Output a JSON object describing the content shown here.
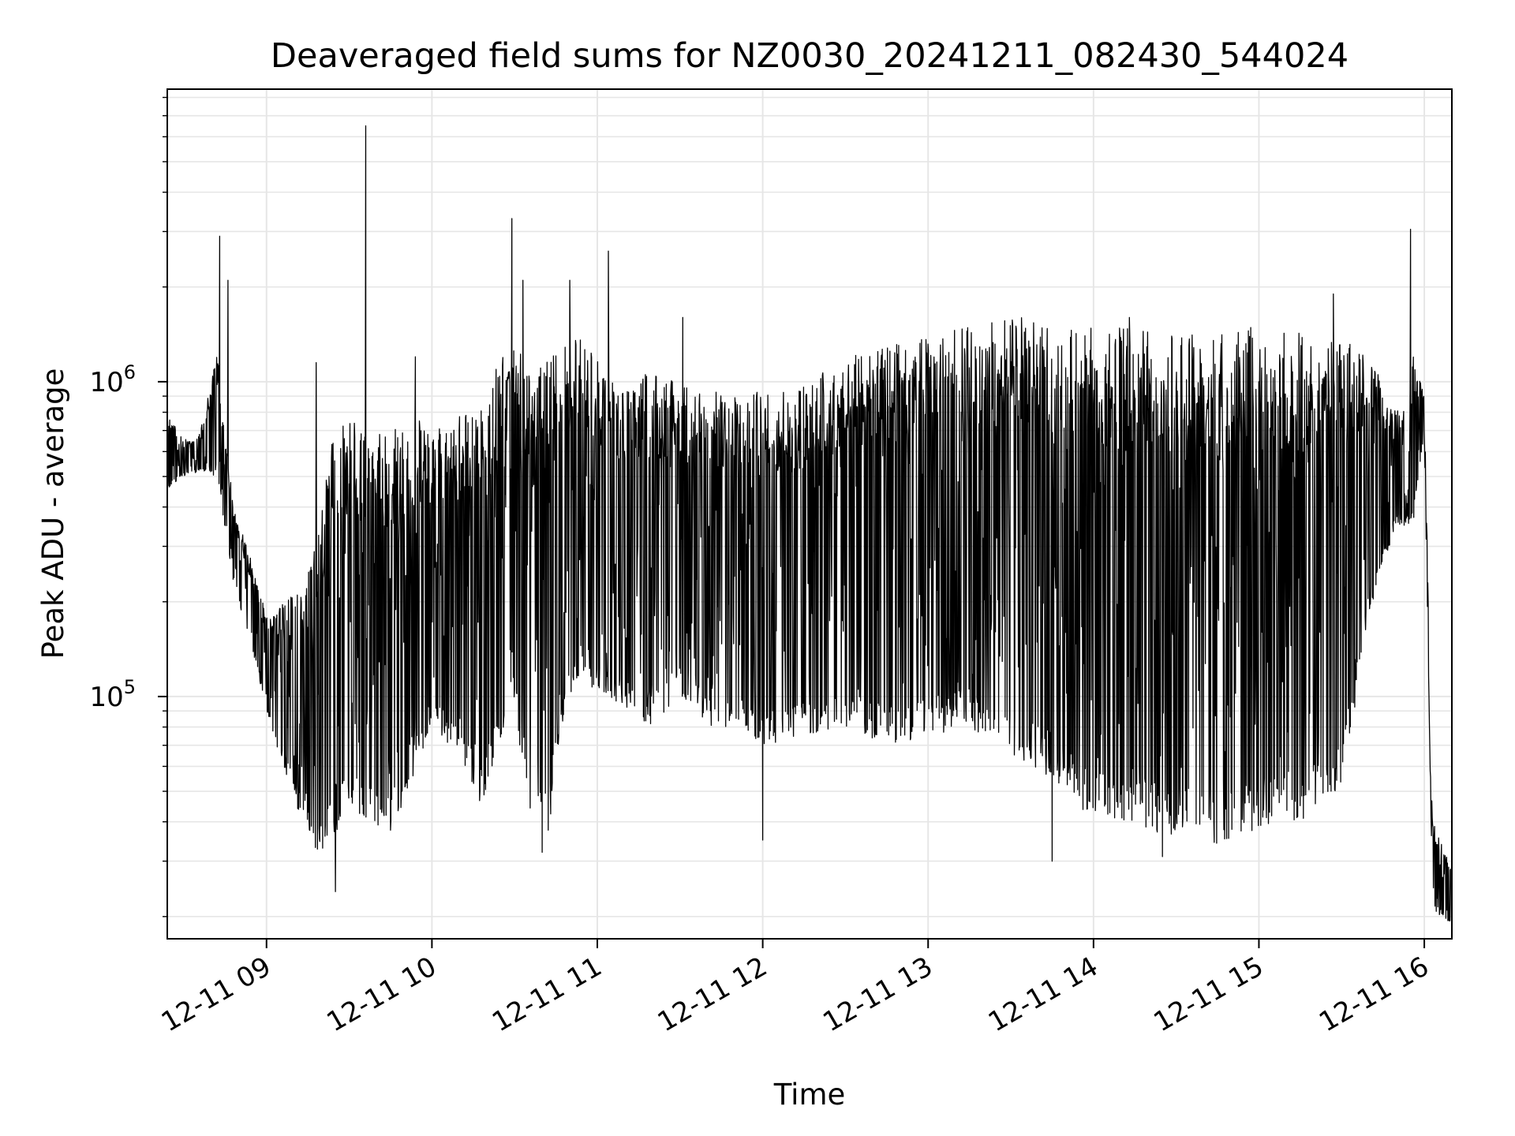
{
  "chart_data": {
    "type": "line",
    "title": "Deaveraged field sums for NZ0030_20241211_082430_544024",
    "xlabel": "Time",
    "ylabel": "Peak ADU - average",
    "yscale": "log",
    "grid": true,
    "line_color": "#000000",
    "grid_color": "#e6e6e6",
    "xlim": [
      "2024-12-11 08:24",
      "2024-12-11 16:10"
    ],
    "ylim": [
      17000,
      8500000
    ],
    "x_ticks": [
      "12-11 09",
      "12-11 10",
      "12-11 11",
      "12-11 12",
      "12-11 13",
      "12-11 14",
      "12-11 15",
      "12-11 16"
    ],
    "y_ticks": [
      {
        "base": "10",
        "exp": "5",
        "value": 100000
      },
      {
        "base": "10",
        "exp": "6",
        "value": 1000000
      }
    ],
    "series": [
      {
        "envelope": {
          "x": [
            "2024-12-11 08:24",
            "2024-12-11 08:30",
            "2024-12-11 08:36",
            "2024-12-11 08:42",
            "2024-12-11 08:48",
            "2024-12-11 08:54",
            "2024-12-11 09:00",
            "2024-12-11 09:06",
            "2024-12-11 09:12",
            "2024-12-11 09:18",
            "2024-12-11 09:24",
            "2024-12-11 09:30",
            "2024-12-11 09:36",
            "2024-12-11 09:42",
            "2024-12-11 09:48",
            "2024-12-11 09:54",
            "2024-12-11 10:00",
            "2024-12-11 10:06",
            "2024-12-11 10:12",
            "2024-12-11 10:18",
            "2024-12-11 10:24",
            "2024-12-11 10:30",
            "2024-12-11 10:36",
            "2024-12-11 10:42",
            "2024-12-11 10:48",
            "2024-12-11 10:54",
            "2024-12-11 11:00",
            "2024-12-11 11:10",
            "2024-12-11 11:20",
            "2024-12-11 11:30",
            "2024-12-11 11:40",
            "2024-12-11 11:50",
            "2024-12-11 12:00",
            "2024-12-11 12:15",
            "2024-12-11 12:30",
            "2024-12-11 12:45",
            "2024-12-11 13:00",
            "2024-12-11 13:15",
            "2024-12-11 13:30",
            "2024-12-11 13:45",
            "2024-12-11 14:00",
            "2024-12-11 14:15",
            "2024-12-11 14:30",
            "2024-12-11 14:45",
            "2024-12-11 15:00",
            "2024-12-11 15:15",
            "2024-12-11 15:30",
            "2024-12-11 15:40",
            "2024-12-11 15:50",
            "2024-12-11 15:56",
            "2024-12-11 16:00",
            "2024-12-11 16:03",
            "2024-12-11 16:06",
            "2024-12-11 16:10"
          ],
          "upper": [
            800000,
            650000,
            700000,
            1300000,
            400000,
            280000,
            180000,
            200000,
            220000,
            300000,
            700000,
            750000,
            740000,
            730000,
            700000,
            800000,
            700000,
            750000,
            800000,
            850000,
            1200000,
            1500000,
            1000000,
            1200000,
            1300000,
            1400000,
            1200000,
            950000,
            1100000,
            1000000,
            950000,
            900000,
            950000,
            1000000,
            1200000,
            1300000,
            1400000,
            1500000,
            1600000,
            1600000,
            1500000,
            1500000,
            1400000,
            1450000,
            1500000,
            1450000,
            1400000,
            1200000,
            800000,
            1200000,
            900000,
            40000,
            35000,
            30000
          ],
          "lower": [
            450000,
            500000,
            520000,
            500000,
            230000,
            150000,
            90000,
            60000,
            42000,
            30000,
            35000,
            45000,
            40000,
            35000,
            40000,
            55000,
            80000,
            70000,
            60000,
            45000,
            70000,
            90000,
            40000,
            35000,
            90000,
            120000,
            100000,
            90000,
            80000,
            100000,
            80000,
            80000,
            70000,
            75000,
            80000,
            70000,
            75000,
            80000,
            65000,
            55000,
            40000,
            38000,
            36000,
            34000,
            38000,
            40000,
            50000,
            180000,
            350000,
            350000,
            700000,
            21000,
            20000,
            19000
          ]
        }
      }
    ],
    "spikes": [
      {
        "x": "2024-12-11 08:43",
        "y": 2900000
      },
      {
        "x": "2024-12-11 08:46",
        "y": 2100000
      },
      {
        "x": "2024-12-11 09:18",
        "y": 1150000
      },
      {
        "x": "2024-12-11 09:36",
        "y": 6500000
      },
      {
        "x": "2024-12-11 09:54",
        "y": 1200000
      },
      {
        "x": "2024-12-11 10:29",
        "y": 3300000
      },
      {
        "x": "2024-12-11 10:33",
        "y": 2100000
      },
      {
        "x": "2024-12-11 10:50",
        "y": 2100000
      },
      {
        "x": "2024-12-11 11:04",
        "y": 2600000
      },
      {
        "x": "2024-12-11 11:31",
        "y": 1600000
      },
      {
        "x": "2024-12-11 14:13",
        "y": 1600000
      },
      {
        "x": "2024-12-11 15:27",
        "y": 1900000
      },
      {
        "x": "2024-12-11 15:55",
        "y": 3050000
      }
    ],
    "dips": [
      {
        "x": "2024-12-11 09:25",
        "y": 24000
      },
      {
        "x": "2024-12-11 10:40",
        "y": 32000
      },
      {
        "x": "2024-12-11 12:00",
        "y": 35000
      },
      {
        "x": "2024-12-11 13:45",
        "y": 30000
      },
      {
        "x": "2024-12-11 14:25",
        "y": 31000
      }
    ]
  }
}
